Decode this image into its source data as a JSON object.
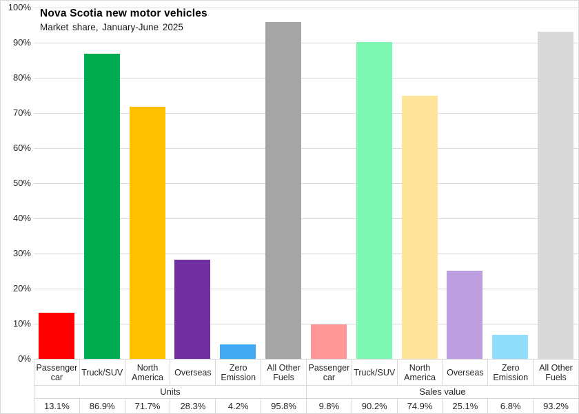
{
  "chart_data": {
    "type": "bar",
    "title": "Nova Scotia new motor vehicles",
    "subtitle": "Market share, January-June 2025",
    "xlabel": "",
    "ylabel": "",
    "ylim": [
      0,
      100
    ],
    "ytick_step": 10,
    "yticks": [
      "0%",
      "10%",
      "20%",
      "30%",
      "40%",
      "50%",
      "60%",
      "70%",
      "80%",
      "90%",
      "100%"
    ],
    "grid": true,
    "legend": "none",
    "categories": [
      "Passenger car",
      "Truck/SUV",
      "North America",
      "Overseas",
      "Zero Emission",
      "All Other Fuels"
    ],
    "series": [
      {
        "name": "Units",
        "values": [
          13.1,
          86.9,
          71.7,
          28.3,
          4.2,
          95.8
        ],
        "value_labels": [
          "13.1%",
          "86.9%",
          "71.7%",
          "28.3%",
          "4.2%",
          "95.8%"
        ],
        "colors": [
          "#FF0000",
          "#00AC50",
          "#FFC000",
          "#7030A0",
          "#41A9F1",
          "#A5A5A5"
        ]
      },
      {
        "name": "Sales value",
        "values": [
          9.8,
          90.2,
          74.9,
          25.1,
          6.8,
          93.2
        ],
        "value_labels": [
          "9.8%",
          "90.2%",
          "74.9%",
          "25.1%",
          "6.8%",
          "93.2%"
        ],
        "colors": [
          "#FF9799",
          "#7EF7B4",
          "#FFE599",
          "#BD9FE0",
          "#90DEFB",
          "#D9D9D9"
        ]
      }
    ]
  },
  "colors": {
    "background": "#FFFFFF",
    "gridline": "#D9D9D9",
    "text": "#262626",
    "title": "#000000"
  }
}
